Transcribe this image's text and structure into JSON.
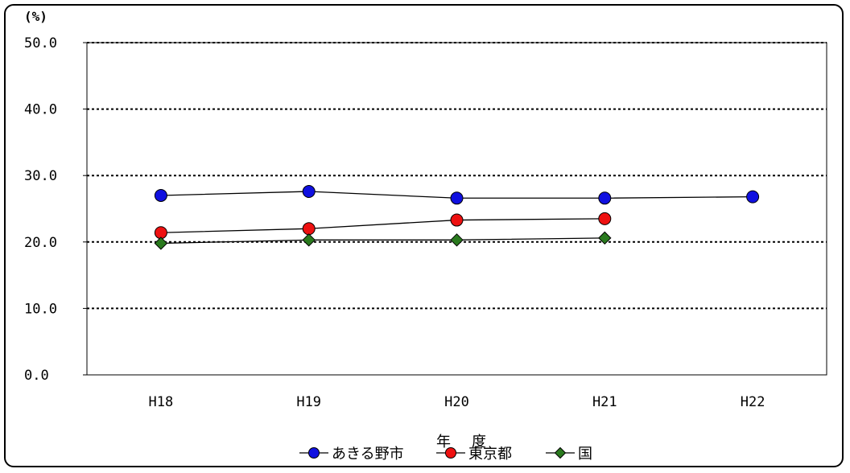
{
  "chart_data": {
    "type": "line",
    "unit_label": "(%)",
    "xlabel": "年　度",
    "ylabel": "",
    "categories": [
      "H18",
      "H19",
      "H20",
      "H21",
      "H22"
    ],
    "ylim": [
      0,
      50
    ],
    "yticks": [
      0,
      10,
      20,
      30,
      40,
      50
    ],
    "ytick_labels": [
      "0.0",
      "10.0",
      "20.0",
      "30.0",
      "40.0",
      "50.0"
    ],
    "grid": "horizontal-dotted",
    "legend_position": "bottom",
    "series": [
      {
        "name": "あきる野市",
        "marker": "circle",
        "color": "#1010e0",
        "values": [
          27.0,
          27.6,
          26.6,
          26.6,
          26.8
        ]
      },
      {
        "name": "東京都",
        "marker": "circle",
        "color": "#ee1111",
        "values": [
          21.4,
          22.0,
          23.3,
          23.5,
          null
        ]
      },
      {
        "name": "国",
        "marker": "diamond",
        "color": "#2a7a1e",
        "values": [
          19.8,
          20.3,
          20.3,
          20.6,
          null
        ]
      }
    ]
  }
}
